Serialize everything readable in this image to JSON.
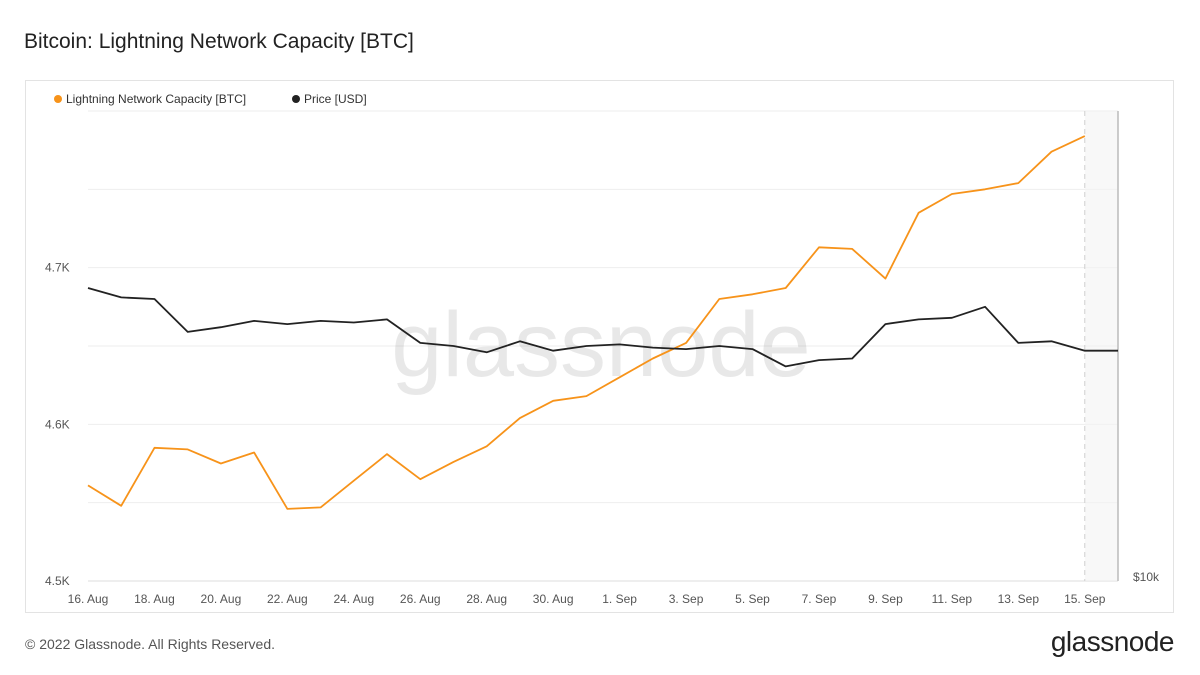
{
  "title": "Bitcoin: Lightning Network Capacity [BTC]",
  "footer": {
    "copyright": "© 2022 Glassnode. All Rights Reserved.",
    "logo": "glassnode"
  },
  "watermark": "glassnode",
  "colors": {
    "capacity": "#f7931a",
    "price": "#222222",
    "grid": "#eeeeee",
    "axis_text": "#555555"
  },
  "chart_data": {
    "type": "line",
    "legend_position": "top-left",
    "grid": true,
    "x_tick_labels": [
      "16. Aug",
      "18. Aug",
      "20. Aug",
      "22. Aug",
      "24. Aug",
      "26. Aug",
      "28. Aug",
      "30. Aug",
      "1. Sep",
      "3. Sep",
      "5. Sep",
      "7. Sep",
      "9. Sep",
      "11. Sep",
      "13. Sep",
      "15. Sep"
    ],
    "x": [
      "16. Aug",
      "17. Aug",
      "18. Aug",
      "19. Aug",
      "20. Aug",
      "21. Aug",
      "22. Aug",
      "23. Aug",
      "24. Aug",
      "25. Aug",
      "26. Aug",
      "27. Aug",
      "28. Aug",
      "29. Aug",
      "30. Aug",
      "31. Aug",
      "1. Sep",
      "2. Sep",
      "3. Sep",
      "4. Sep",
      "5. Sep",
      "6. Sep",
      "7. Sep",
      "8. Sep",
      "9. Sep",
      "10. Sep",
      "11. Sep",
      "12. Sep",
      "13. Sep",
      "14. Sep",
      "15. Sep",
      "16. Sep"
    ],
    "y_left": {
      "ticks": [
        "4.5K",
        "4.6K",
        "4.7K"
      ],
      "tick_values": [
        4500,
        4600,
        4700
      ],
      "range": [
        4500,
        4800
      ]
    },
    "y_right": {
      "ticks": [
        "$10k"
      ]
    },
    "series": [
      {
        "name": "Lightning Network Capacity [BTC]",
        "axis": "left",
        "color": "#f7931a",
        "values": [
          4561,
          4548,
          4585,
          4584,
          4575,
          4582,
          4546,
          4547,
          4564,
          4581,
          4565,
          4576,
          4586,
          4604,
          4615,
          4618,
          4630,
          4642,
          4652,
          4680,
          4683,
          4687,
          4713,
          4712,
          4693,
          4735,
          4747,
          4750,
          4754,
          4774,
          4784,
          null
        ]
      },
      {
        "name": "Price [USD]",
        "axis": "left",
        "color": "#222222",
        "values": [
          4687,
          4681,
          4680,
          4659,
          4662,
          4666,
          4664,
          4666,
          4665,
          4667,
          4652,
          4650,
          4646,
          4653,
          4647,
          4650,
          4651,
          4649,
          4648,
          4650,
          4648,
          4637,
          4641,
          4642,
          4664,
          4667,
          4668,
          4675,
          4652,
          4653,
          4647,
          4647
        ]
      }
    ]
  }
}
